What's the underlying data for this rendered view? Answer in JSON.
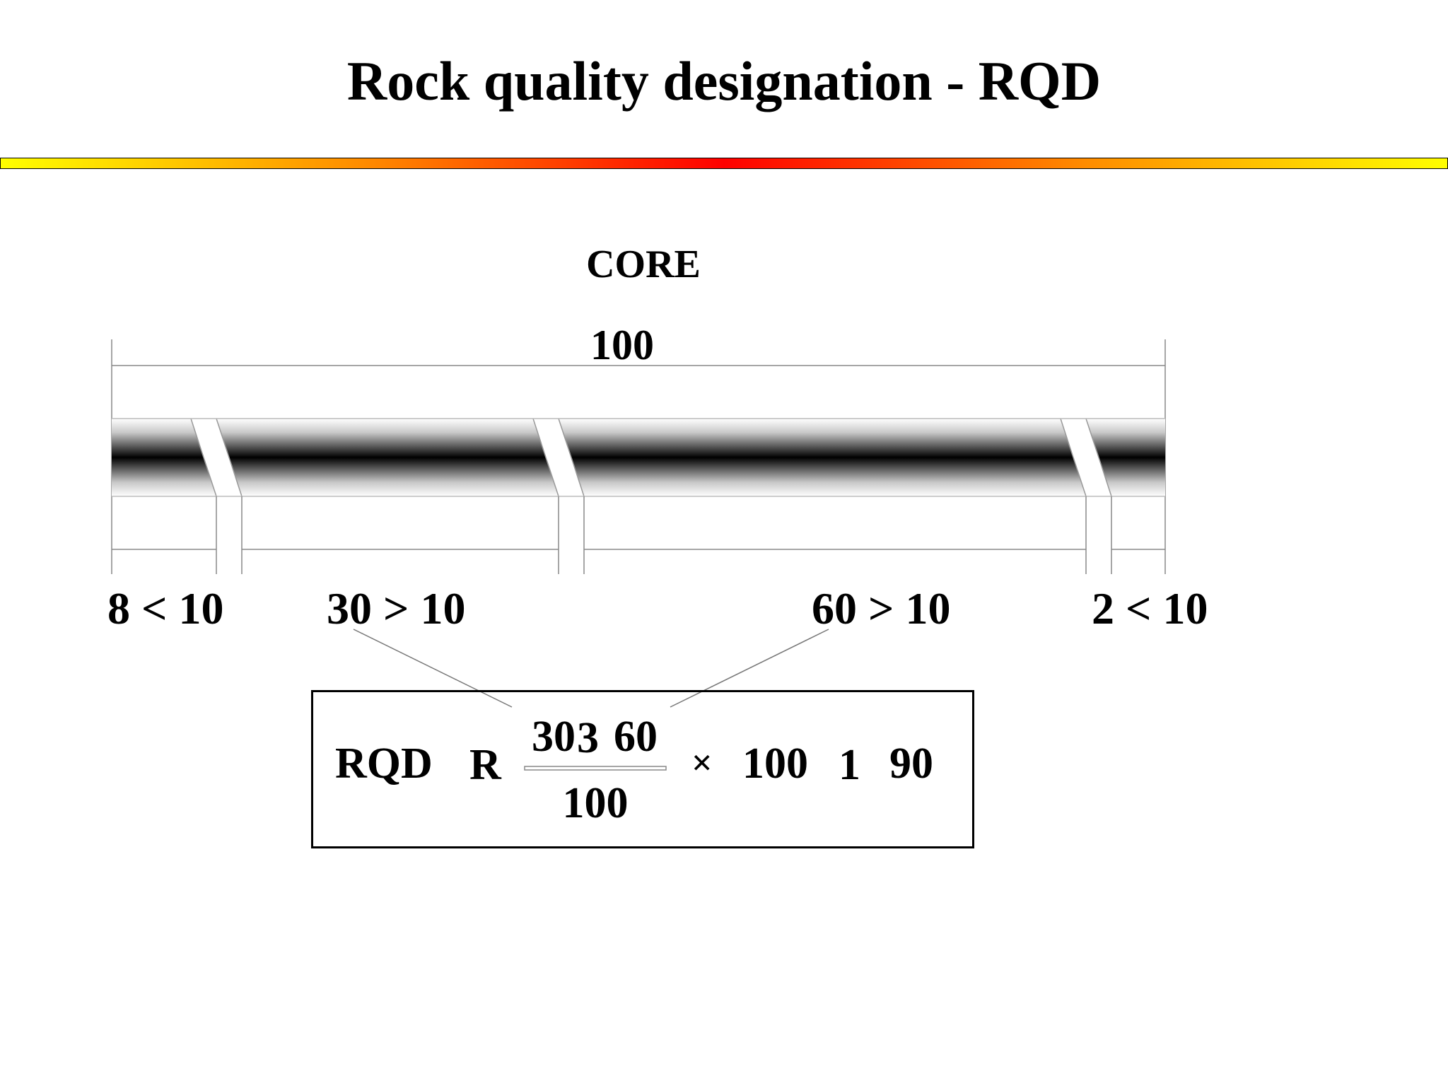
{
  "title": "Rock quality designation - RQD",
  "core": {
    "label": "CORE",
    "total_length": "100"
  },
  "pieces": [
    {
      "label": "8 < 10"
    },
    {
      "label": "30 > 10"
    },
    {
      "label": "60 > 10"
    },
    {
      "label": "2 < 10"
    }
  ],
  "formula": {
    "lhs": "RQD",
    "eq": "R",
    "numerator_a": "30",
    "plus": "3",
    "numerator_b": "60",
    "denominator": "100",
    "times": "×",
    "factor": "100",
    "eq2": "1",
    "result": "90"
  },
  "colors": {
    "core_dark": "#000000",
    "rule_center": "#ff0000",
    "rule_edge": "#ffff00"
  }
}
